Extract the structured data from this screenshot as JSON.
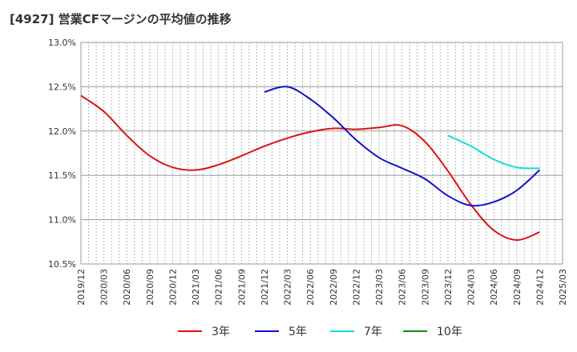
{
  "chart_data": {
    "type": "line",
    "title": "[4927]  営業CFマージンの平均値の推移",
    "x": [
      "2019/12",
      "2020/03",
      "2020/06",
      "2020/09",
      "2020/12",
      "2021/03",
      "2021/06",
      "2021/09",
      "2021/12",
      "2022/03",
      "2022/06",
      "2022/09",
      "2022/12",
      "2023/03",
      "2023/06",
      "2023/09",
      "2023/12",
      "2024/03",
      "2024/06",
      "2024/09",
      "2024/12",
      "2025/03"
    ],
    "ylim": [
      10.5,
      13.0
    ],
    "yticks": [
      "10.5%",
      "11.0%",
      "11.5%",
      "12.0%",
      "12.5%",
      "13.0%"
    ],
    "grid": true,
    "legend_position": "bottom",
    "series": [
      {
        "name": "3年",
        "color": "#dd1111",
        "values": [
          12.4,
          12.22,
          11.95,
          11.72,
          11.59,
          11.56,
          11.62,
          11.72,
          11.83,
          11.92,
          11.99,
          12.03,
          12.02,
          12.04,
          12.06,
          11.88,
          11.55,
          11.17,
          10.88,
          10.77,
          10.86,
          null
        ]
      },
      {
        "name": "5年",
        "color": "#1111cc",
        "values": [
          null,
          null,
          null,
          null,
          null,
          null,
          null,
          null,
          12.44,
          12.5,
          12.36,
          12.15,
          11.9,
          11.7,
          11.58,
          11.46,
          11.27,
          11.16,
          11.2,
          11.33,
          11.56,
          null
        ]
      },
      {
        "name": "7年",
        "color": "#11dddd",
        "values": [
          null,
          null,
          null,
          null,
          null,
          null,
          null,
          null,
          null,
          null,
          null,
          null,
          null,
          null,
          null,
          null,
          11.95,
          11.83,
          11.68,
          11.59,
          11.58,
          null
        ]
      },
      {
        "name": "10年",
        "color": "#118811",
        "values": [
          null,
          null,
          null,
          null,
          null,
          null,
          null,
          null,
          null,
          null,
          null,
          null,
          null,
          null,
          null,
          null,
          null,
          null,
          null,
          null,
          null,
          null
        ]
      }
    ]
  }
}
